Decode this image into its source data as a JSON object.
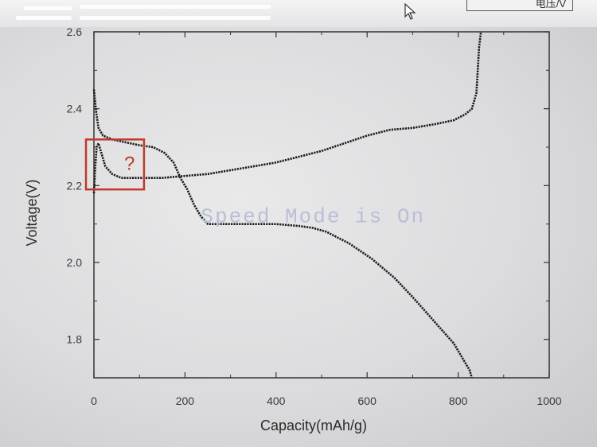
{
  "window_tab": {
    "label": "电压/V"
  },
  "watermark": "Speed Mode is On",
  "colors": {
    "curve": "#1a1a1a",
    "annotation": "#c0392b",
    "watermark": "#b8bfd6",
    "axis": "#333333"
  },
  "chart_data": {
    "type": "line",
    "xlabel": "Capacity(mAh/g)",
    "ylabel": "Voltage(V)",
    "xlim": [
      0,
      1000
    ],
    "ylim": [
      1.7,
      2.6
    ],
    "xticks": [
      0,
      200,
      400,
      600,
      800,
      1000
    ],
    "yticks": [
      1.8,
      2.0,
      2.2,
      2.4,
      2.6
    ],
    "grid": false,
    "series": [
      {
        "x": [
          0,
          5,
          10,
          20,
          40,
          60,
          80,
          100,
          130,
          155,
          175,
          190,
          205,
          220,
          235,
          250,
          300,
          350,
          400,
          450,
          480,
          510,
          560,
          610,
          660,
          700,
          730,
          760,
          790,
          810,
          825,
          830
        ],
        "y": [
          2.45,
          2.39,
          2.35,
          2.33,
          2.32,
          2.315,
          2.31,
          2.305,
          2.3,
          2.285,
          2.26,
          2.22,
          2.19,
          2.15,
          2.12,
          2.1,
          2.1,
          2.1,
          2.1,
          2.095,
          2.09,
          2.08,
          2.05,
          2.01,
          1.96,
          1.91,
          1.87,
          1.83,
          1.79,
          1.75,
          1.72,
          1.7
        ]
      },
      {
        "x": [
          0,
          3,
          6,
          10,
          15,
          25,
          40,
          60,
          80,
          100,
          150,
          200,
          250,
          300,
          350,
          400,
          450,
          500,
          550,
          600,
          650,
          700,
          750,
          790,
          815,
          830,
          840,
          843,
          846,
          850
        ],
        "y": [
          2.18,
          2.25,
          2.3,
          2.31,
          2.29,
          2.25,
          2.23,
          2.22,
          2.22,
          2.22,
          2.22,
          2.225,
          2.23,
          2.24,
          2.25,
          2.26,
          2.275,
          2.29,
          2.31,
          2.33,
          2.345,
          2.35,
          2.36,
          2.37,
          2.385,
          2.4,
          2.44,
          2.5,
          2.56,
          2.6
        ]
      }
    ],
    "annotations": [
      {
        "text": "?",
        "x_range": [
          0,
          110
        ],
        "y_range": [
          2.19,
          2.32
        ]
      }
    ]
  }
}
